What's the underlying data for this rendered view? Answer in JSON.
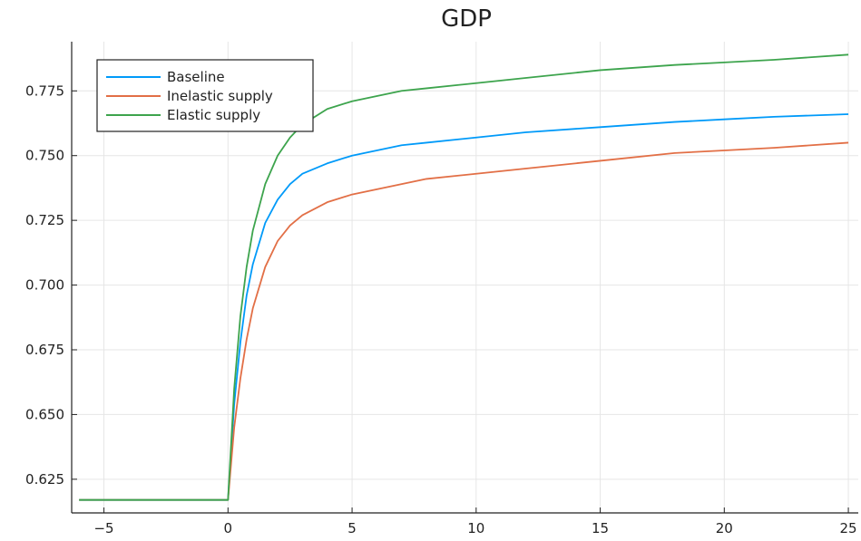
{
  "chart_data": {
    "type": "line",
    "title": "GDP",
    "xlabel": "",
    "ylabel": "",
    "xlim": [
      -6.3,
      25.4
    ],
    "ylim": [
      0.612,
      0.794
    ],
    "xticks": [
      -5,
      0,
      5,
      10,
      15,
      20,
      25
    ],
    "xtick_labels": [
      "−5",
      "0",
      "5",
      "10",
      "15",
      "20",
      "25"
    ],
    "yticks": [
      0.625,
      0.65,
      0.675,
      0.7,
      0.725,
      0.75,
      0.775
    ],
    "ytick_labels": [
      "0.625",
      "0.650",
      "0.675",
      "0.700",
      "0.725",
      "0.750",
      "0.775"
    ],
    "grid": true,
    "legend_position": "top-left",
    "series": [
      {
        "name": "Baseline",
        "color": "#009af9",
        "x": [
          -6,
          0,
          0.25,
          0.5,
          0.75,
          1,
          1.5,
          2,
          2.5,
          3,
          4,
          5,
          6,
          7,
          8,
          10,
          12,
          15,
          18,
          20,
          22,
          25
        ],
        "y": [
          0.617,
          0.617,
          0.654,
          0.678,
          0.696,
          0.708,
          0.724,
          0.733,
          0.739,
          0.743,
          0.747,
          0.75,
          0.752,
          0.754,
          0.755,
          0.757,
          0.759,
          0.761,
          0.763,
          0.764,
          0.765,
          0.766
        ]
      },
      {
        "name": "Inelastic supply",
        "color": "#e26f46",
        "x": [
          -6,
          0,
          0.25,
          0.5,
          0.75,
          1,
          1.5,
          2,
          2.5,
          3,
          4,
          5,
          6,
          7,
          8,
          10,
          12,
          15,
          18,
          20,
          22,
          25
        ],
        "y": [
          0.617,
          0.617,
          0.645,
          0.664,
          0.679,
          0.691,
          0.707,
          0.717,
          0.723,
          0.727,
          0.732,
          0.735,
          0.737,
          0.739,
          0.741,
          0.743,
          0.745,
          0.748,
          0.751,
          0.752,
          0.753,
          0.755
        ]
      },
      {
        "name": "Elastic supply",
        "color": "#3da44d",
        "x": [
          -6,
          0,
          0.25,
          0.5,
          0.75,
          1,
          1.5,
          2,
          2.5,
          3,
          4,
          5,
          6,
          7,
          8,
          10,
          12,
          15,
          18,
          20,
          22,
          25
        ],
        "y": [
          0.617,
          0.617,
          0.66,
          0.688,
          0.707,
          0.721,
          0.739,
          0.75,
          0.757,
          0.762,
          0.768,
          0.771,
          0.773,
          0.775,
          0.776,
          0.778,
          0.78,
          0.783,
          0.785,
          0.786,
          0.787,
          0.789
        ]
      }
    ]
  }
}
